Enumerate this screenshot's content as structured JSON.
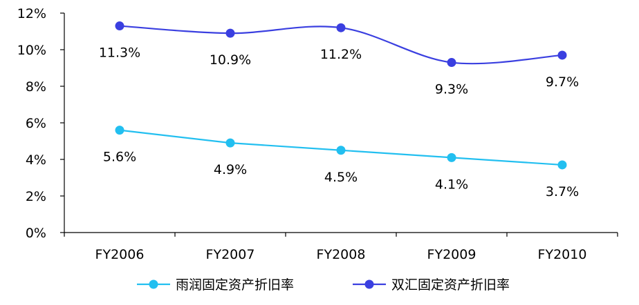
{
  "chart_data": {
    "type": "line",
    "categories": [
      "FY2006",
      "FY2007",
      "FY2008",
      "FY2009",
      "FY2010"
    ],
    "series": [
      {
        "name": "雨润固定资产折旧率",
        "values": [
          5.6,
          4.9,
          4.5,
          4.1,
          3.7
        ],
        "labels": [
          "5.6%",
          "4.9%",
          "4.5%",
          "4.1%",
          "3.7%"
        ],
        "color": "#22BFF0",
        "smooth": false
      },
      {
        "name": "双汇固定资产折旧率",
        "values": [
          11.3,
          10.9,
          11.2,
          9.3,
          9.7
        ],
        "labels": [
          "11.3%",
          "10.9%",
          "11.2%",
          "9.3%",
          "9.7%"
        ],
        "color": "#3A3FE0",
        "smooth": true
      }
    ],
    "y_ticks": [
      "0%",
      "2%",
      "4%",
      "6%",
      "8%",
      "10%",
      "12%"
    ],
    "ylim": [
      0,
      12
    ],
    "grid": false,
    "legend_position": "bottom",
    "axis_color": "#000000"
  }
}
